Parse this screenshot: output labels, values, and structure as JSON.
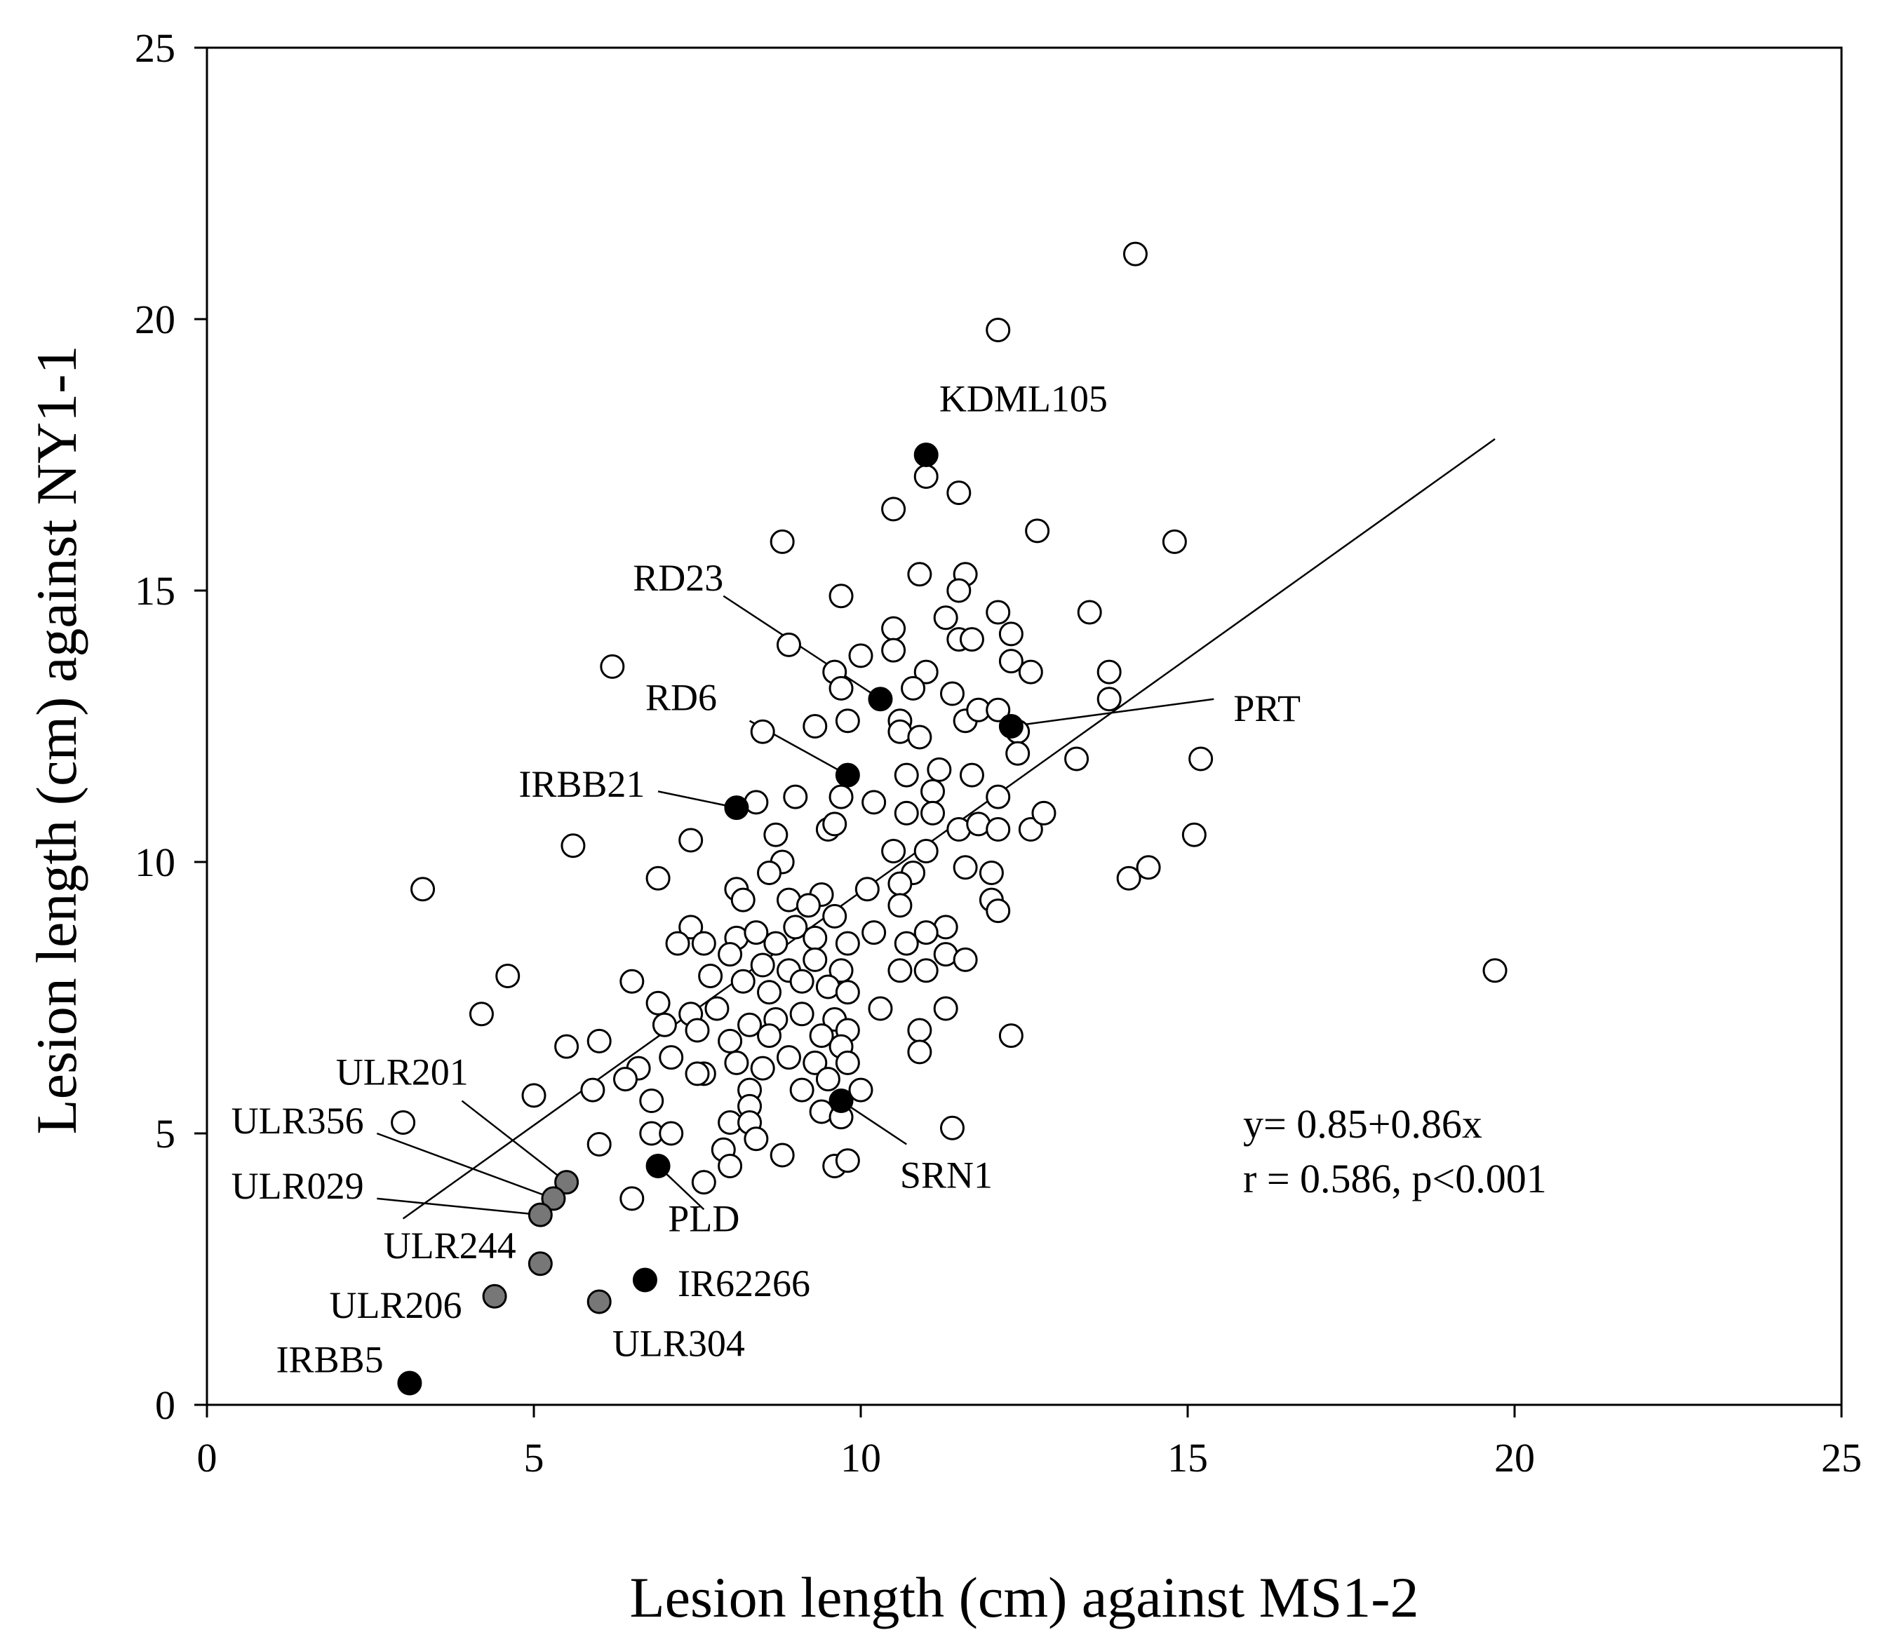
{
  "chart_data": {
    "type": "scatter",
    "title": "",
    "xlabel": "Lesion length (cm) against MS1-2",
    "ylabel": "Lesion length (cm) against NY1-1",
    "xlim": [
      0,
      25
    ],
    "ylim": [
      0,
      25
    ],
    "xticks": [
      0,
      5,
      10,
      15,
      20,
      25
    ],
    "yticks": [
      0,
      5,
      10,
      15,
      20,
      25
    ],
    "regression": {
      "intercept": 0.85,
      "slope": 0.86,
      "x_range": [
        3.0,
        19.7
      ]
    },
    "stats_text": [
      "y= 0.85+0.86x",
      "r = 0.586, p<0.001"
    ],
    "colors": {
      "open": "#ffffff",
      "highlight": "#000000",
      "ulr": "#777777",
      "stroke": "#000000"
    },
    "labeled_points": [
      {
        "label": "KDML105",
        "x": 11.0,
        "y": 17.5,
        "color": "#000000",
        "text_x": 11.2,
        "text_y": 18.3,
        "anchor": "start",
        "leader": null
      },
      {
        "label": "RD23",
        "x": 10.3,
        "y": 13.0,
        "color": "#000000",
        "text_x": 7.9,
        "text_y": 15.0,
        "anchor": "end",
        "leader": [
          7.9,
          14.9
        ]
      },
      {
        "label": "PRT",
        "x": 12.3,
        "y": 12.5,
        "color": "#000000",
        "text_x": 15.7,
        "text_y": 12.6,
        "anchor": "start",
        "leader": [
          15.4,
          13.0
        ]
      },
      {
        "label": "RD6",
        "x": 9.8,
        "y": 11.6,
        "color": "#000000",
        "text_x": 7.8,
        "text_y": 12.8,
        "anchor": "end",
        "leader": [
          8.3,
          12.6
        ]
      },
      {
        "label": "IRBB21",
        "x": 8.1,
        "y": 11.0,
        "color": "#000000",
        "text_x": 6.7,
        "text_y": 11.2,
        "anchor": "end",
        "leader": [
          6.9,
          11.3
        ]
      },
      {
        "label": "SRN1",
        "x": 9.7,
        "y": 5.6,
        "color": "#000000",
        "text_x": 10.6,
        "text_y": 4.0,
        "anchor": "start",
        "leader": [
          10.7,
          4.8
        ]
      },
      {
        "label": "PLD",
        "x": 6.9,
        "y": 4.4,
        "color": "#000000",
        "text_x": 7.6,
        "text_y": 3.2,
        "anchor": "middle",
        "leader": [
          7.6,
          3.6
        ]
      },
      {
        "label": "IR62266",
        "x": 6.7,
        "y": 2.3,
        "color": "#000000",
        "text_x": 7.2,
        "text_y": 2.0,
        "anchor": "start",
        "leader": null
      },
      {
        "label": "IRBB5",
        "x": 3.1,
        "y": 0.4,
        "color": "#000000",
        "text_x": 2.7,
        "text_y": 0.6,
        "anchor": "end",
        "leader": null
      },
      {
        "label": "ULR201",
        "x": 5.5,
        "y": 4.1,
        "color": "#777777",
        "text_x": 4.0,
        "text_y": 5.9,
        "anchor": "end",
        "leader": [
          3.9,
          5.6
        ]
      },
      {
        "label": "ULR356",
        "x": 5.3,
        "y": 3.8,
        "color": "#777777",
        "text_x": 2.4,
        "text_y": 5.0,
        "anchor": "end",
        "leader": [
          2.6,
          5.0
        ]
      },
      {
        "label": "ULR029",
        "x": 5.1,
        "y": 3.5,
        "color": "#777777",
        "text_x": 2.4,
        "text_y": 3.8,
        "anchor": "end",
        "leader": [
          2.6,
          3.8
        ]
      },
      {
        "label": "ULR244",
        "x": 5.1,
        "y": 2.6,
        "color": "#777777",
        "text_x": 2.7,
        "text_y": 2.7,
        "anchor": "start",
        "leader": null
      },
      {
        "label": "ULR206",
        "x": 4.4,
        "y": 2.0,
        "color": "#777777",
        "text_x": 3.9,
        "text_y": 1.6,
        "anchor": "end",
        "leader": null
      },
      {
        "label": "ULR304",
        "x": 6.0,
        "y": 1.9,
        "color": "#777777",
        "text_x": 6.2,
        "text_y": 0.9,
        "anchor": "start",
        "leader": null
      }
    ],
    "points": [
      [
        14.2,
        21.2
      ],
      [
        12.1,
        19.8
      ],
      [
        10.5,
        16.5
      ],
      [
        11.5,
        16.8
      ],
      [
        11.0,
        17.1
      ],
      [
        8.8,
        15.9
      ],
      [
        12.7,
        16.1
      ],
      [
        14.8,
        15.9
      ],
      [
        9.7,
        14.9
      ],
      [
        10.9,
        15.3
      ],
      [
        11.6,
        15.3
      ],
      [
        11.5,
        15.0
      ],
      [
        12.1,
        14.6
      ],
      [
        13.5,
        14.6
      ],
      [
        8.9,
        14.0
      ],
      [
        10.5,
        14.3
      ],
      [
        11.3,
        14.5
      ],
      [
        12.3,
        14.2
      ],
      [
        11.5,
        14.1
      ],
      [
        11.7,
        14.1
      ],
      [
        6.2,
        13.6
      ],
      [
        9.6,
        13.5
      ],
      [
        10.0,
        13.8
      ],
      [
        10.5,
        13.9
      ],
      [
        11.0,
        13.5
      ],
      [
        12.3,
        13.7
      ],
      [
        12.6,
        13.5
      ],
      [
        13.8,
        13.5
      ],
      [
        9.7,
        13.2
      ],
      [
        10.8,
        13.2
      ],
      [
        11.4,
        13.1
      ],
      [
        13.8,
        13.0
      ],
      [
        9.3,
        12.5
      ],
      [
        9.8,
        12.6
      ],
      [
        10.6,
        12.6
      ],
      [
        11.6,
        12.6
      ],
      [
        11.8,
        12.8
      ],
      [
        12.1,
        12.8
      ],
      [
        8.5,
        12.4
      ],
      [
        10.6,
        12.4
      ],
      [
        10.9,
        12.3
      ],
      [
        12.4,
        12.4
      ],
      [
        11.2,
        11.7
      ],
      [
        12.4,
        12.0
      ],
      [
        15.2,
        11.9
      ],
      [
        13.3,
        11.9
      ],
      [
        8.4,
        11.1
      ],
      [
        9.0,
        11.2
      ],
      [
        10.2,
        11.1
      ],
      [
        10.7,
        11.6
      ],
      [
        11.1,
        11.3
      ],
      [
        11.7,
        11.6
      ],
      [
        12.1,
        11.2
      ],
      [
        9.7,
        11.2
      ],
      [
        10.7,
        10.9
      ],
      [
        11.1,
        10.9
      ],
      [
        11.5,
        10.6
      ],
      [
        11.8,
        10.7
      ],
      [
        12.1,
        10.6
      ],
      [
        12.6,
        10.6
      ],
      [
        12.8,
        10.9
      ],
      [
        5.6,
        10.3
      ],
      [
        7.4,
        10.4
      ],
      [
        8.7,
        10.5
      ],
      [
        9.5,
        10.6
      ],
      [
        9.6,
        10.7
      ],
      [
        10.5,
        10.2
      ],
      [
        11.0,
        10.2
      ],
      [
        15.1,
        10.5
      ],
      [
        8.8,
        10.0
      ],
      [
        8.6,
        9.8
      ],
      [
        10.8,
        9.8
      ],
      [
        11.6,
        9.9
      ],
      [
        12.0,
        9.8
      ],
      [
        14.1,
        9.7
      ],
      [
        14.4,
        9.9
      ],
      [
        3.3,
        9.5
      ],
      [
        6.9,
        9.7
      ],
      [
        8.1,
        9.5
      ],
      [
        9.4,
        9.4
      ],
      [
        10.1,
        9.5
      ],
      [
        10.6,
        9.6
      ],
      [
        12.0,
        9.3
      ],
      [
        12.1,
        9.1
      ],
      [
        8.2,
        9.3
      ],
      [
        8.9,
        9.3
      ],
      [
        9.2,
        9.2
      ],
      [
        9.6,
        9.0
      ],
      [
        10.6,
        9.2
      ],
      [
        11.3,
        8.8
      ],
      [
        7.4,
        8.8
      ],
      [
        7.6,
        8.5
      ],
      [
        8.1,
        8.6
      ],
      [
        8.4,
        8.7
      ],
      [
        8.7,
        8.5
      ],
      [
        9.0,
        8.8
      ],
      [
        9.3,
        8.6
      ],
      [
        9.8,
        8.5
      ],
      [
        10.2,
        8.7
      ],
      [
        10.7,
        8.5
      ],
      [
        11.0,
        8.7
      ],
      [
        7.2,
        8.5
      ],
      [
        8.0,
        8.3
      ],
      [
        8.5,
        8.1
      ],
      [
        8.9,
        8.0
      ],
      [
        9.3,
        8.2
      ],
      [
        9.7,
        8.0
      ],
      [
        10.6,
        8.0
      ],
      [
        11.0,
        8.0
      ],
      [
        11.3,
        8.3
      ],
      [
        11.6,
        8.2
      ],
      [
        4.6,
        7.9
      ],
      [
        6.5,
        7.8
      ],
      [
        7.7,
        7.9
      ],
      [
        8.2,
        7.8
      ],
      [
        8.6,
        7.6
      ],
      [
        9.1,
        7.8
      ],
      [
        9.5,
        7.7
      ],
      [
        9.8,
        7.6
      ],
      [
        4.2,
        7.2
      ],
      [
        6.9,
        7.4
      ],
      [
        7.4,
        7.2
      ],
      [
        7.8,
        7.3
      ],
      [
        8.3,
        7.0
      ],
      [
        8.7,
        7.1
      ],
      [
        9.1,
        7.2
      ],
      [
        9.6,
        7.1
      ],
      [
        10.3,
        7.3
      ],
      [
        10.9,
        6.9
      ],
      [
        11.3,
        7.3
      ],
      [
        6.0,
        6.7
      ],
      [
        7.0,
        7.0
      ],
      [
        7.5,
        6.9
      ],
      [
        8.0,
        6.7
      ],
      [
        8.6,
        6.8
      ],
      [
        9.4,
        6.8
      ],
      [
        9.8,
        6.9
      ],
      [
        12.3,
        6.8
      ],
      [
        5.5,
        6.6
      ],
      [
        6.6,
        6.2
      ],
      [
        7.1,
        6.4
      ],
      [
        7.6,
        6.1
      ],
      [
        8.1,
        6.3
      ],
      [
        8.5,
        6.2
      ],
      [
        8.9,
        6.4
      ],
      [
        9.3,
        6.3
      ],
      [
        9.7,
        6.6
      ],
      [
        10.9,
        6.5
      ],
      [
        6.4,
        6.0
      ],
      [
        7.5,
        6.1
      ],
      [
        8.3,
        5.8
      ],
      [
        9.1,
        5.8
      ],
      [
        9.5,
        6.0
      ],
      [
        9.8,
        6.3
      ],
      [
        10.0,
        5.8
      ],
      [
        5.0,
        5.7
      ],
      [
        5.9,
        5.8
      ],
      [
        6.8,
        5.6
      ],
      [
        8.3,
        5.5
      ],
      [
        9.4,
        5.4
      ],
      [
        8.0,
        5.2
      ],
      [
        8.3,
        5.2
      ],
      [
        9.7,
        5.3
      ],
      [
        3.0,
        5.2
      ],
      [
        11.4,
        5.1
      ],
      [
        6.8,
        5.0
      ],
      [
        7.1,
        5.0
      ],
      [
        7.9,
        4.7
      ],
      [
        8.4,
        4.9
      ],
      [
        8.8,
        4.6
      ],
      [
        6.0,
        4.8
      ],
      [
        8.0,
        4.4
      ],
      [
        9.6,
        4.4
      ],
      [
        9.8,
        4.5
      ],
      [
        7.6,
        4.1
      ],
      [
        6.5,
        3.8
      ],
      [
        19.7,
        8.0
      ]
    ]
  }
}
